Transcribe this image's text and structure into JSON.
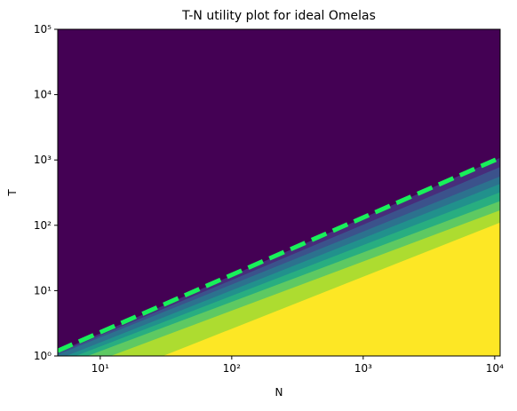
{
  "chart_data": {
    "type": "contourf",
    "title": "T-N utility plot for ideal Omelas",
    "xlabel": "N",
    "ylabel": "T",
    "xscale": "log",
    "yscale": "log",
    "xlim": [
      4.75,
      11000
    ],
    "ylim": [
      1,
      100000
    ],
    "xticks": [
      {
        "value": 10,
        "label": "10¹"
      },
      {
        "value": 100,
        "label": "10²"
      },
      {
        "value": 1000,
        "label": "10³"
      },
      {
        "value": 10000,
        "label": "10⁴"
      }
    ],
    "yticks": [
      {
        "value": 1,
        "label": "10⁰"
      },
      {
        "value": 10,
        "label": "10¹"
      },
      {
        "value": 100,
        "label": "10²"
      },
      {
        "value": 1000,
        "label": "10³"
      },
      {
        "value": 10000,
        "label": "10⁴"
      },
      {
        "value": 100000,
        "label": "10⁵"
      }
    ],
    "background_color": "#440154",
    "regions": [
      {
        "color": "#472d7b",
        "x": [
          4.75,
          11000
        ],
        "y": [
          1.15,
          1080
        ]
      },
      {
        "color": "#3b528b",
        "x": [
          4.75,
          11000
        ],
        "y": [
          1.1,
          780
        ]
      },
      {
        "color": "#2c728e",
        "x": [
          4.75,
          11000
        ],
        "y": [
          1.05,
          560
        ]
      },
      {
        "color": "#21918c",
        "x": [
          5.5,
          11000
        ],
        "y": [
          1,
          430
        ]
      },
      {
        "color": "#28ae80",
        "x": [
          6.5,
          11000
        ],
        "y": [
          1,
          320
        ]
      },
      {
        "color": "#5ec962",
        "x": [
          8,
          11000
        ],
        "y": [
          1,
          235
        ]
      },
      {
        "color": "#addc30",
        "x": [
          12,
          11000
        ],
        "y": [
          1,
          170
        ]
      },
      {
        "color": "#fde725",
        "x": [
          30,
          11000
        ],
        "y": [
          1,
          110
        ]
      }
    ],
    "series": [
      {
        "color": "#18f05a",
        "x": [
          4.75,
          11000
        ],
        "y": [
          1.2,
          1080
        ],
        "style": "dashed"
      }
    ]
  }
}
